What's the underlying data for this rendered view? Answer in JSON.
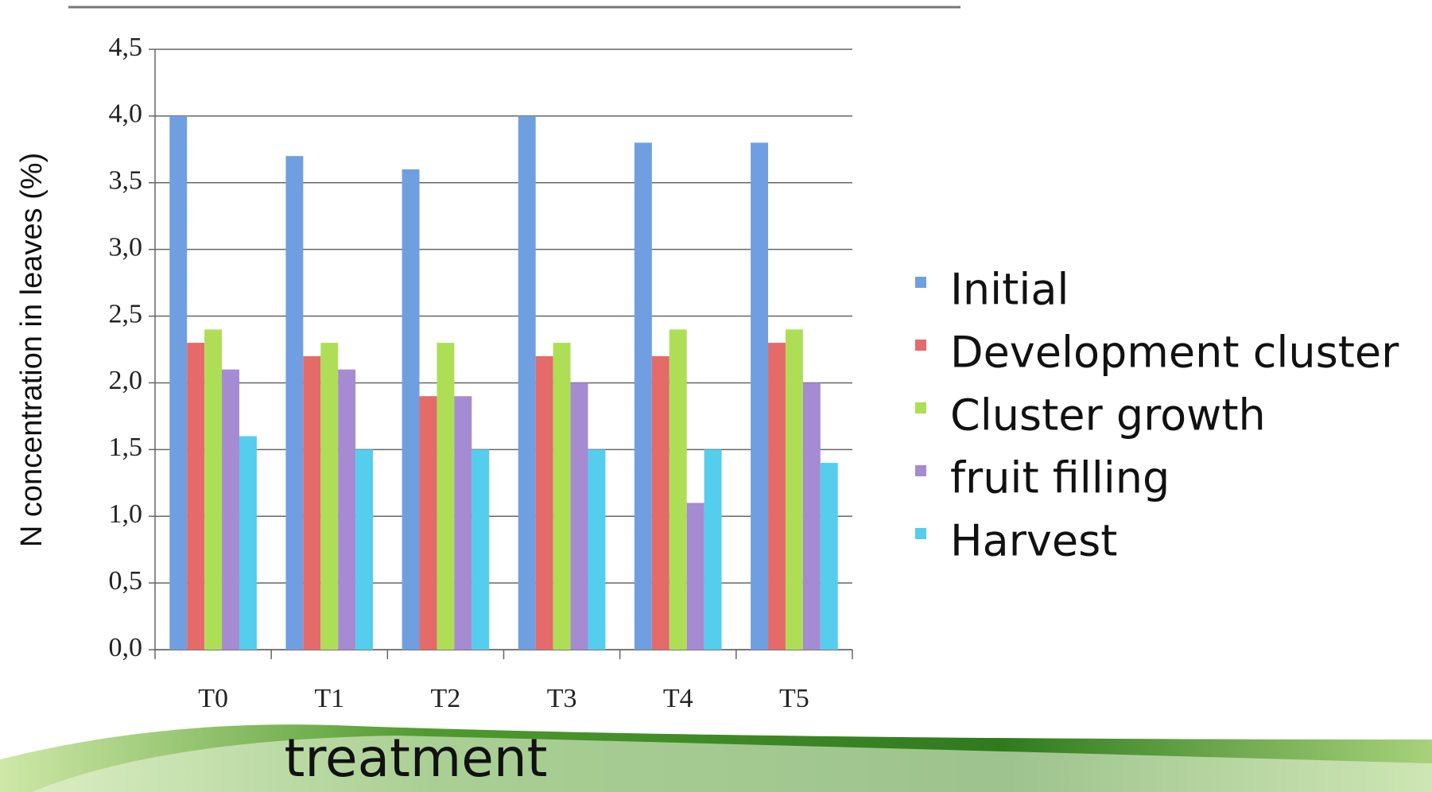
{
  "chart_data": {
    "type": "bar",
    "y_label": "N concentration in leaves (%)",
    "x_label": "treatment",
    "categories": [
      "T0",
      "T1",
      "T2",
      "T3",
      "T4",
      "T5"
    ],
    "series": [
      {
        "name": "Initial",
        "color": "#6f9fe0",
        "values": [
          4.0,
          3.7,
          3.6,
          4.0,
          3.8,
          3.8
        ]
      },
      {
        "name": "Development cluster",
        "color": "#e56a6a",
        "values": [
          2.3,
          2.2,
          1.9,
          2.2,
          2.2,
          2.3
        ]
      },
      {
        "name": "Cluster growth",
        "color": "#aede55",
        "values": [
          2.4,
          2.3,
          2.3,
          2.3,
          2.4,
          2.4
        ]
      },
      {
        "name": "fruit filling",
        "color": "#a58bd2",
        "values": [
          2.1,
          2.1,
          1.9,
          2.0,
          1.1,
          2.0
        ]
      },
      {
        "name": "Harvest",
        "color": "#55cdec",
        "values": [
          1.6,
          1.5,
          1.5,
          1.5,
          1.5,
          1.4
        ]
      }
    ],
    "ylim": [
      0,
      4.5
    ],
    "yticks": [
      {
        "value": 0,
        "label": "0,0"
      },
      {
        "value": 0.5,
        "label": "0,5"
      },
      {
        "value": 1,
        "label": "1,0"
      },
      {
        "value": 1.5,
        "label": "1,5"
      },
      {
        "value": 2,
        "label": "2,0"
      },
      {
        "value": 2.5,
        "label": "2,5"
      },
      {
        "value": 3,
        "label": "3,0"
      },
      {
        "value": 3.5,
        "label": "3,5"
      },
      {
        "value": 4,
        "label": "4,0"
      },
      {
        "value": 4.5,
        "label": "4,5"
      }
    ],
    "grid": true,
    "legend": "right"
  }
}
